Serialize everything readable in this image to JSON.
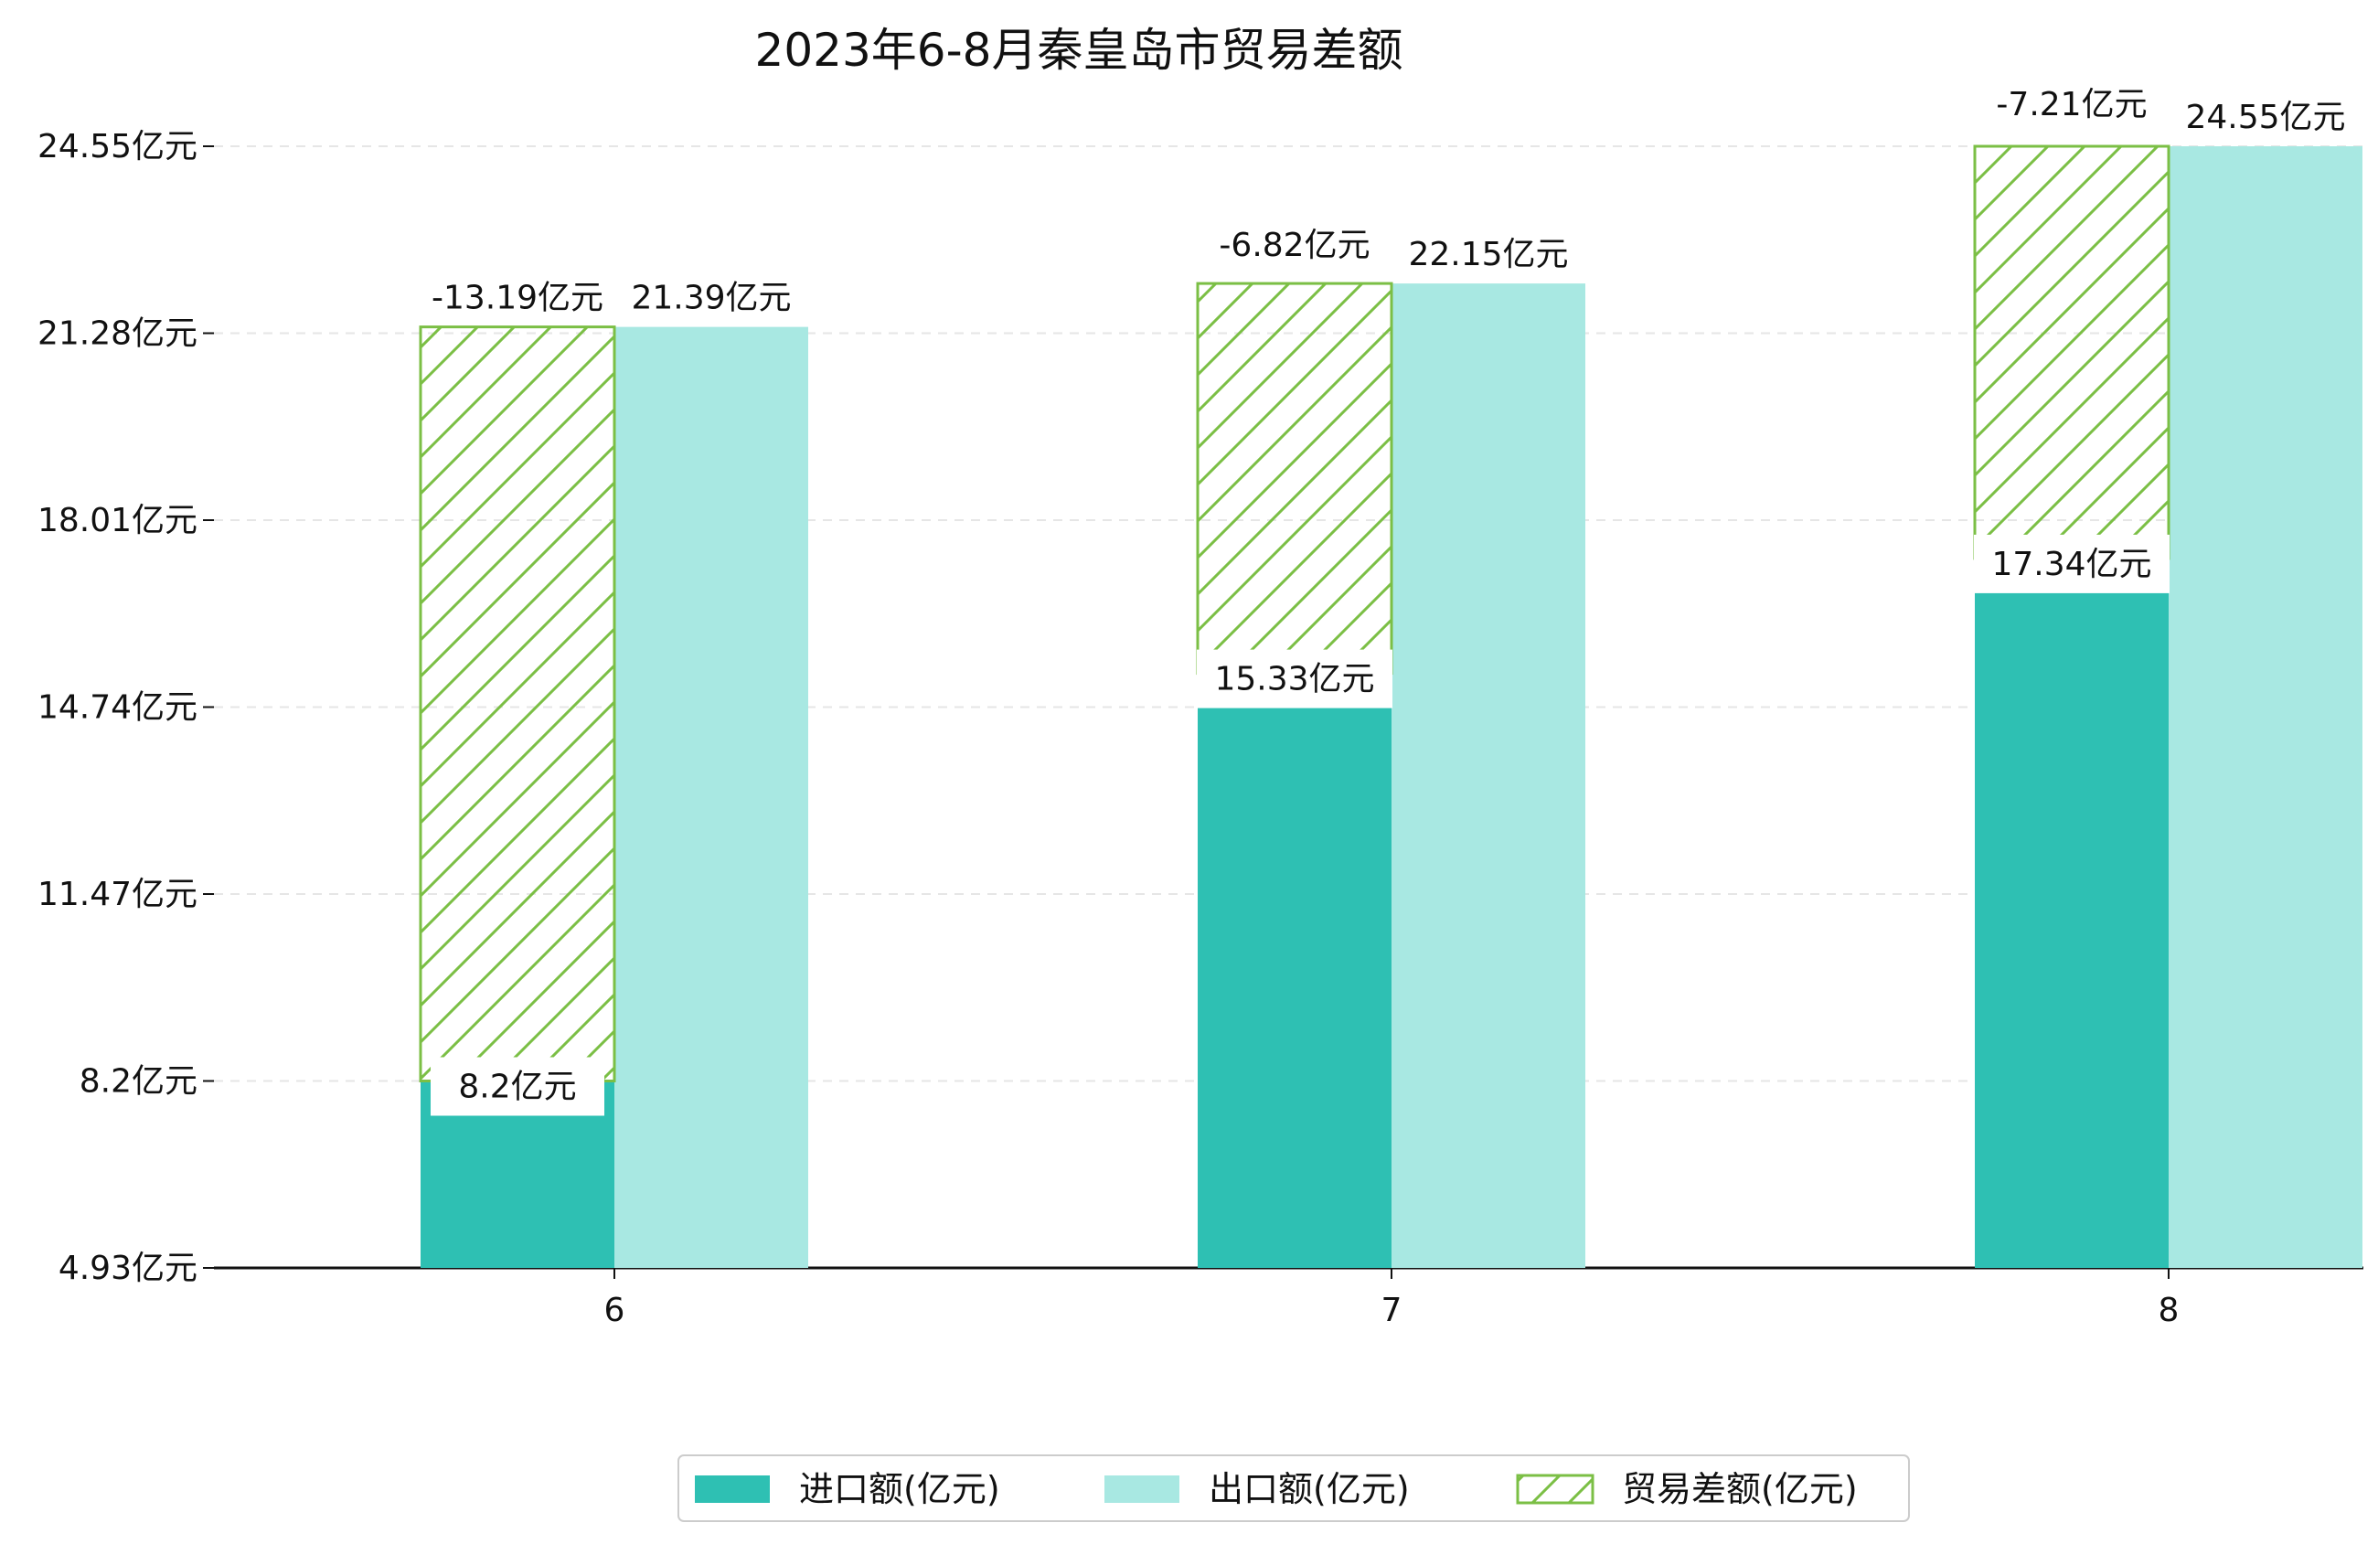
{
  "chart_data": {
    "type": "bar",
    "title": "2023年6-8月秦皇岛市贸易差额",
    "categories": [
      "6",
      "7",
      "8"
    ],
    "y_tick_labels": [
      "4.93亿元",
      "8.2亿元",
      "11.47亿元",
      "14.74亿元",
      "18.01亿元",
      "21.28亿元",
      "24.55亿元"
    ],
    "y_ticks": [
      4.93,
      8.2,
      11.47,
      14.74,
      18.01,
      21.28,
      24.55
    ],
    "ylim": [
      4.93,
      24.55
    ],
    "grid": "horizontal dashed",
    "legend_position": "bottom-center",
    "series": [
      {
        "name": "进口额(亿元)",
        "values": [
          8.2,
          15.33,
          17.34
        ],
        "labels": [
          "8.2亿元",
          "15.33亿元",
          "17.34亿元"
        ],
        "color": "#2ec0b3"
      },
      {
        "name": "出口额(亿元)",
        "values": [
          21.39,
          22.15,
          24.55
        ],
        "labels": [
          "21.39亿元",
          "22.15亿元",
          "24.55亿元"
        ],
        "color": "#a8e8e2"
      },
      {
        "name": "贸易差额(亿元)",
        "values": [
          -13.19,
          -6.82,
          -7.21
        ],
        "labels": [
          "-13.19亿元",
          "-6.82亿元",
          "-7.21亿元"
        ],
        "color": "#7bbf45",
        "style": "hatched"
      }
    ]
  }
}
